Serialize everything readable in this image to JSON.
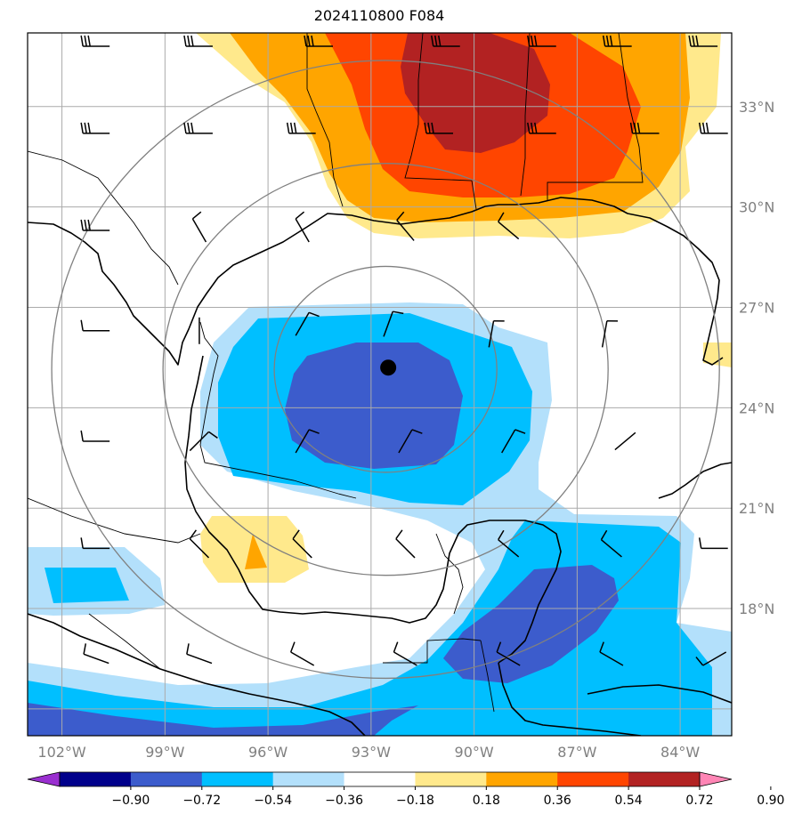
{
  "title": "2024110800 F084",
  "map": {
    "lon_min": -103.0,
    "lon_max": -82.5,
    "lat_min": 14.2,
    "lat_max": 35.2,
    "lat_gridlines": [
      15,
      18,
      21,
      24,
      27,
      30,
      33
    ],
    "lon_gridlines": [
      -102,
      -99,
      -96,
      -93,
      -90,
      -87,
      -84
    ],
    "lat_labels": [
      "18°N",
      "21°N",
      "24°N",
      "27°N",
      "30°N",
      "33°N"
    ],
    "lat_label_values": [
      18,
      21,
      24,
      27,
      30,
      33
    ],
    "lon_labels": [
      "102°W",
      "99°W",
      "96°W",
      "93°W",
      "90°W",
      "87°W",
      "84°W"
    ],
    "lon_label_values": [
      -102,
      -99,
      -96,
      -93,
      -90,
      -87,
      -84
    ],
    "storm_center": {
      "lon": -92.5,
      "lat": 25.2
    },
    "range_rings_deg": [
      3,
      6,
      9
    ],
    "colors": {
      "gridline": "#aaaaaa",
      "ring": "#808080",
      "coast": "#000000",
      "frame": "#000000"
    }
  },
  "colorbar": {
    "levels": [
      "−0.90",
      "−0.72",
      "−0.54",
      "−0.36",
      "−0.18",
      "0.18",
      "0.36",
      "0.54",
      "0.72",
      "0.90"
    ],
    "colors": [
      "#9a2fd0",
      "#00008b",
      "#3c5ccc",
      "#00bfff",
      "#b3e0fb",
      "#ffffff",
      "#ffe98c",
      "#ffa500",
      "#ff4500",
      "#b22222",
      "#ff85b5"
    ]
  },
  "wind_barb_color": "#000000"
}
